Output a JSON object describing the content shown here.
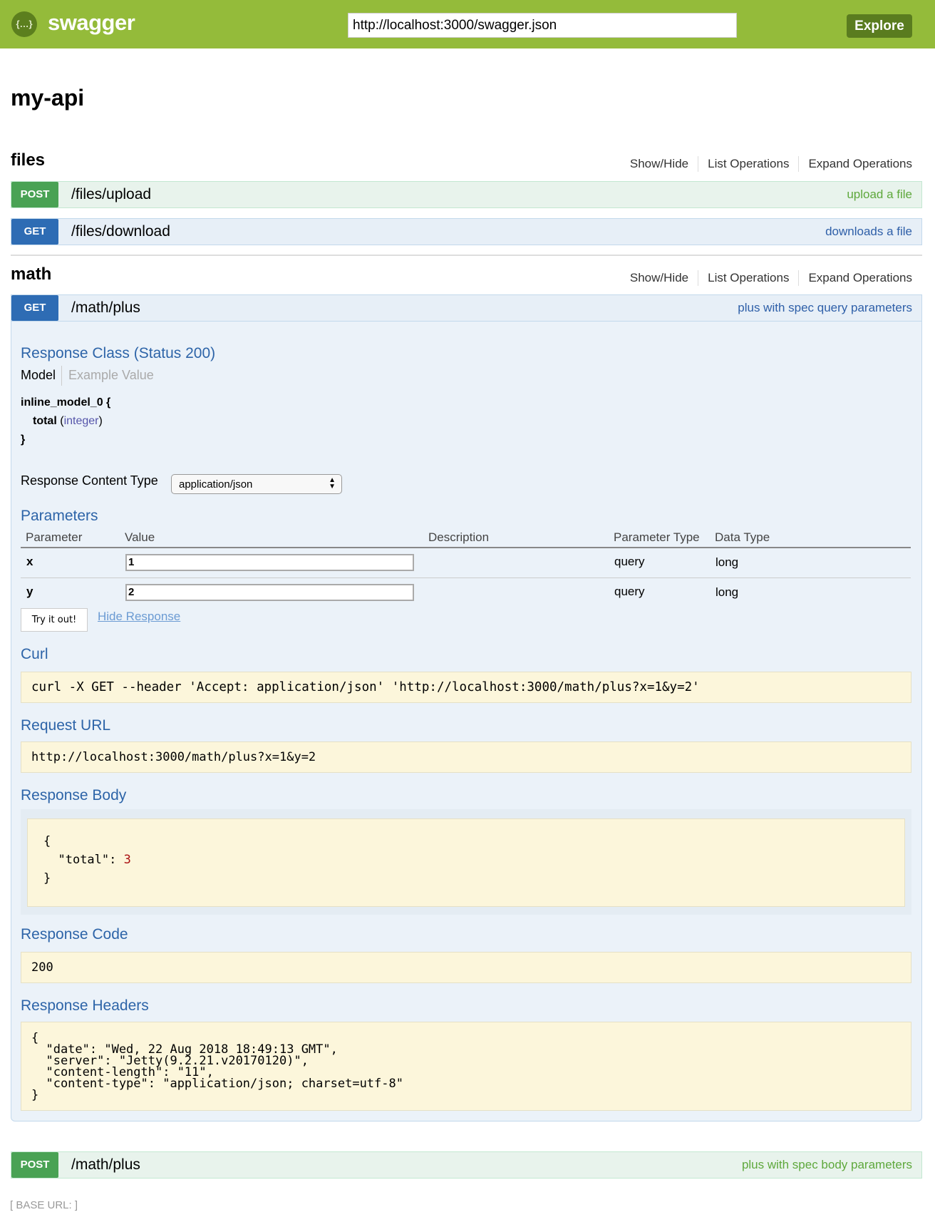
{
  "header": {
    "logo_text": "swagger",
    "logo_icon": "{…}",
    "url": "http://localhost:3000/swagger.json",
    "explore_label": "Explore"
  },
  "title": "my-api",
  "ops_links": {
    "show_hide": "Show/Hide",
    "list": "List Operations",
    "expand": "Expand Operations"
  },
  "sections": [
    {
      "name": "files",
      "operations": [
        {
          "method": "POST",
          "path": "/files/upload",
          "summary": "upload a file"
        },
        {
          "method": "GET",
          "path": "/files/download",
          "summary": "downloads a file"
        }
      ]
    },
    {
      "name": "math",
      "operations": [
        {
          "method": "GET",
          "path": "/math/plus",
          "summary": "plus with spec query parameters"
        },
        {
          "method": "POST",
          "path": "/math/plus",
          "summary": "plus with spec body parameters"
        }
      ]
    }
  ],
  "detail": {
    "response_class": "Response Class (Status 200)",
    "tabs": {
      "model": "Model",
      "example": "Example Value"
    },
    "model": {
      "open": "inline_model_0 {",
      "field": "total",
      "type": "integer",
      "close": "}"
    },
    "content_type_label": "Response Content Type",
    "content_type": "application/json",
    "parameters_title": "Parameters",
    "columns": [
      "Parameter",
      "Value",
      "Description",
      "Parameter Type",
      "Data Type"
    ],
    "params": [
      {
        "name": "x",
        "value": "1",
        "ptype": "query",
        "dtype": "long"
      },
      {
        "name": "y",
        "value": "2",
        "ptype": "query",
        "dtype": "long"
      }
    ],
    "try_label": "Try it out!",
    "hide_label": "Hide Response",
    "curl_title": "Curl",
    "curl": "curl -X GET --header 'Accept: application/json' 'http://localhost:3000/math/plus?x=1&y=2'",
    "request_url_title": "Request URL",
    "request_url": "http://localhost:3000/math/plus?x=1&y=2",
    "response_body_title": "Response Body",
    "body_open": "{",
    "body_key": "\"total\": ",
    "body_value": "3",
    "body_close": "}",
    "response_code_title": "Response Code",
    "response_code": "200",
    "response_headers_title": "Response Headers",
    "headers": "{\n  \"date\": \"Wed, 22 Aug 2018 18:49:13 GMT\",\n  \"server\": \"Jetty(9.2.21.v20170120)\",\n  \"content-length\": \"11\",\n  \"content-type\": \"application/json; charset=utf-8\"\n}"
  },
  "footer": {
    "base_url": "[ BASE URL: ]"
  },
  "colors": {
    "header": "#94bb3a",
    "post": "#49a254",
    "get": "#2e6cb4",
    "heading": "#2d64a8"
  }
}
